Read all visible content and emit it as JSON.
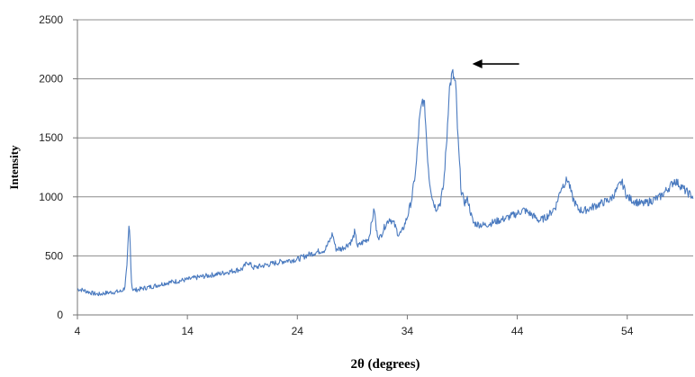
{
  "chart_data": {
    "type": "line",
    "title": "",
    "xlabel": "2θ (degrees)",
    "ylabel": "Intensity",
    "xlim": [
      4,
      60
    ],
    "ylim": [
      0,
      2500
    ],
    "xticks": [
      4,
      14,
      24,
      34,
      44,
      54
    ],
    "yticks": [
      0,
      500,
      1000,
      1500,
      2000,
      2500
    ],
    "grid": "horizontal",
    "colors": {
      "line": "#4a7abf",
      "grid": "#8c8c8c",
      "arrow": "#000000"
    },
    "annotations": [
      {
        "type": "arrow",
        "points_to": {
          "x": 38.6,
          "y": 2050
        }
      }
    ],
    "series": [
      {
        "x": [
          4,
          4.5,
          5,
          5.5,
          6,
          6.5,
          7,
          7.5,
          8,
          8.3,
          8.5,
          8.7,
          8.8,
          8.9,
          9.0,
          9.2,
          9.5,
          10,
          11,
          12,
          13,
          14,
          15,
          16,
          17,
          18,
          19,
          19.5,
          20,
          21,
          22,
          23,
          24,
          25,
          26,
          26.5,
          27,
          27.2,
          27.5,
          28,
          28.5,
          29,
          29.2,
          29.5,
          30,
          30.5,
          31,
          31.2,
          31.5,
          32,
          32.4,
          32.8,
          33.2,
          33.5,
          34,
          34.4,
          34.8,
          35.1,
          35.4,
          35.6,
          35.8,
          36,
          36.3,
          36.6,
          37,
          37.3,
          37.6,
          37.8,
          38.1,
          38.4,
          38.6,
          38.9,
          39.2,
          39.5,
          39.8,
          40,
          40.3,
          41,
          42,
          43,
          44,
          44.6,
          45.3,
          46,
          46.5,
          47,
          47.5,
          48,
          48.6,
          49,
          49.5,
          50,
          50.5,
          51,
          51.5,
          52,
          52.5,
          53,
          53.5,
          54,
          54.5,
          55,
          55.5,
          56,
          56.5,
          57,
          57.5,
          58,
          58.3,
          58.8,
          59.3,
          60
        ],
        "values": [
          220,
          210,
          195,
          180,
          175,
          185,
          190,
          195,
          200,
          230,
          400,
          775,
          600,
          300,
          220,
          210,
          215,
          225,
          245,
          270,
          285,
          300,
          320,
          335,
          350,
          370,
          390,
          450,
          400,
          420,
          440,
          460,
          470,
          510,
          540,
          550,
          640,
          690,
          560,
          560,
          590,
          630,
          700,
          580,
          620,
          650,
          900,
          700,
          650,
          760,
          820,
          770,
          680,
          700,
          830,
          980,
          1250,
          1650,
          1830,
          1750,
          1400,
          1150,
          980,
          900,
          950,
          1100,
          1500,
          1900,
          2050,
          1950,
          1500,
          1050,
          950,
          980,
          850,
          780,
          770,
          760,
          790,
          820,
          860,
          890,
          850,
          800,
          820,
          860,
          920,
          1080,
          1150,
          1000,
          900,
          880,
          900,
          920,
          940,
          960,
          980,
          1050,
          1130,
          1000,
          970,
          950,
          940,
          960,
          980,
          1000,
          1050,
          1100,
          1140,
          1100,
          1050,
          1000
        ]
      }
    ]
  }
}
